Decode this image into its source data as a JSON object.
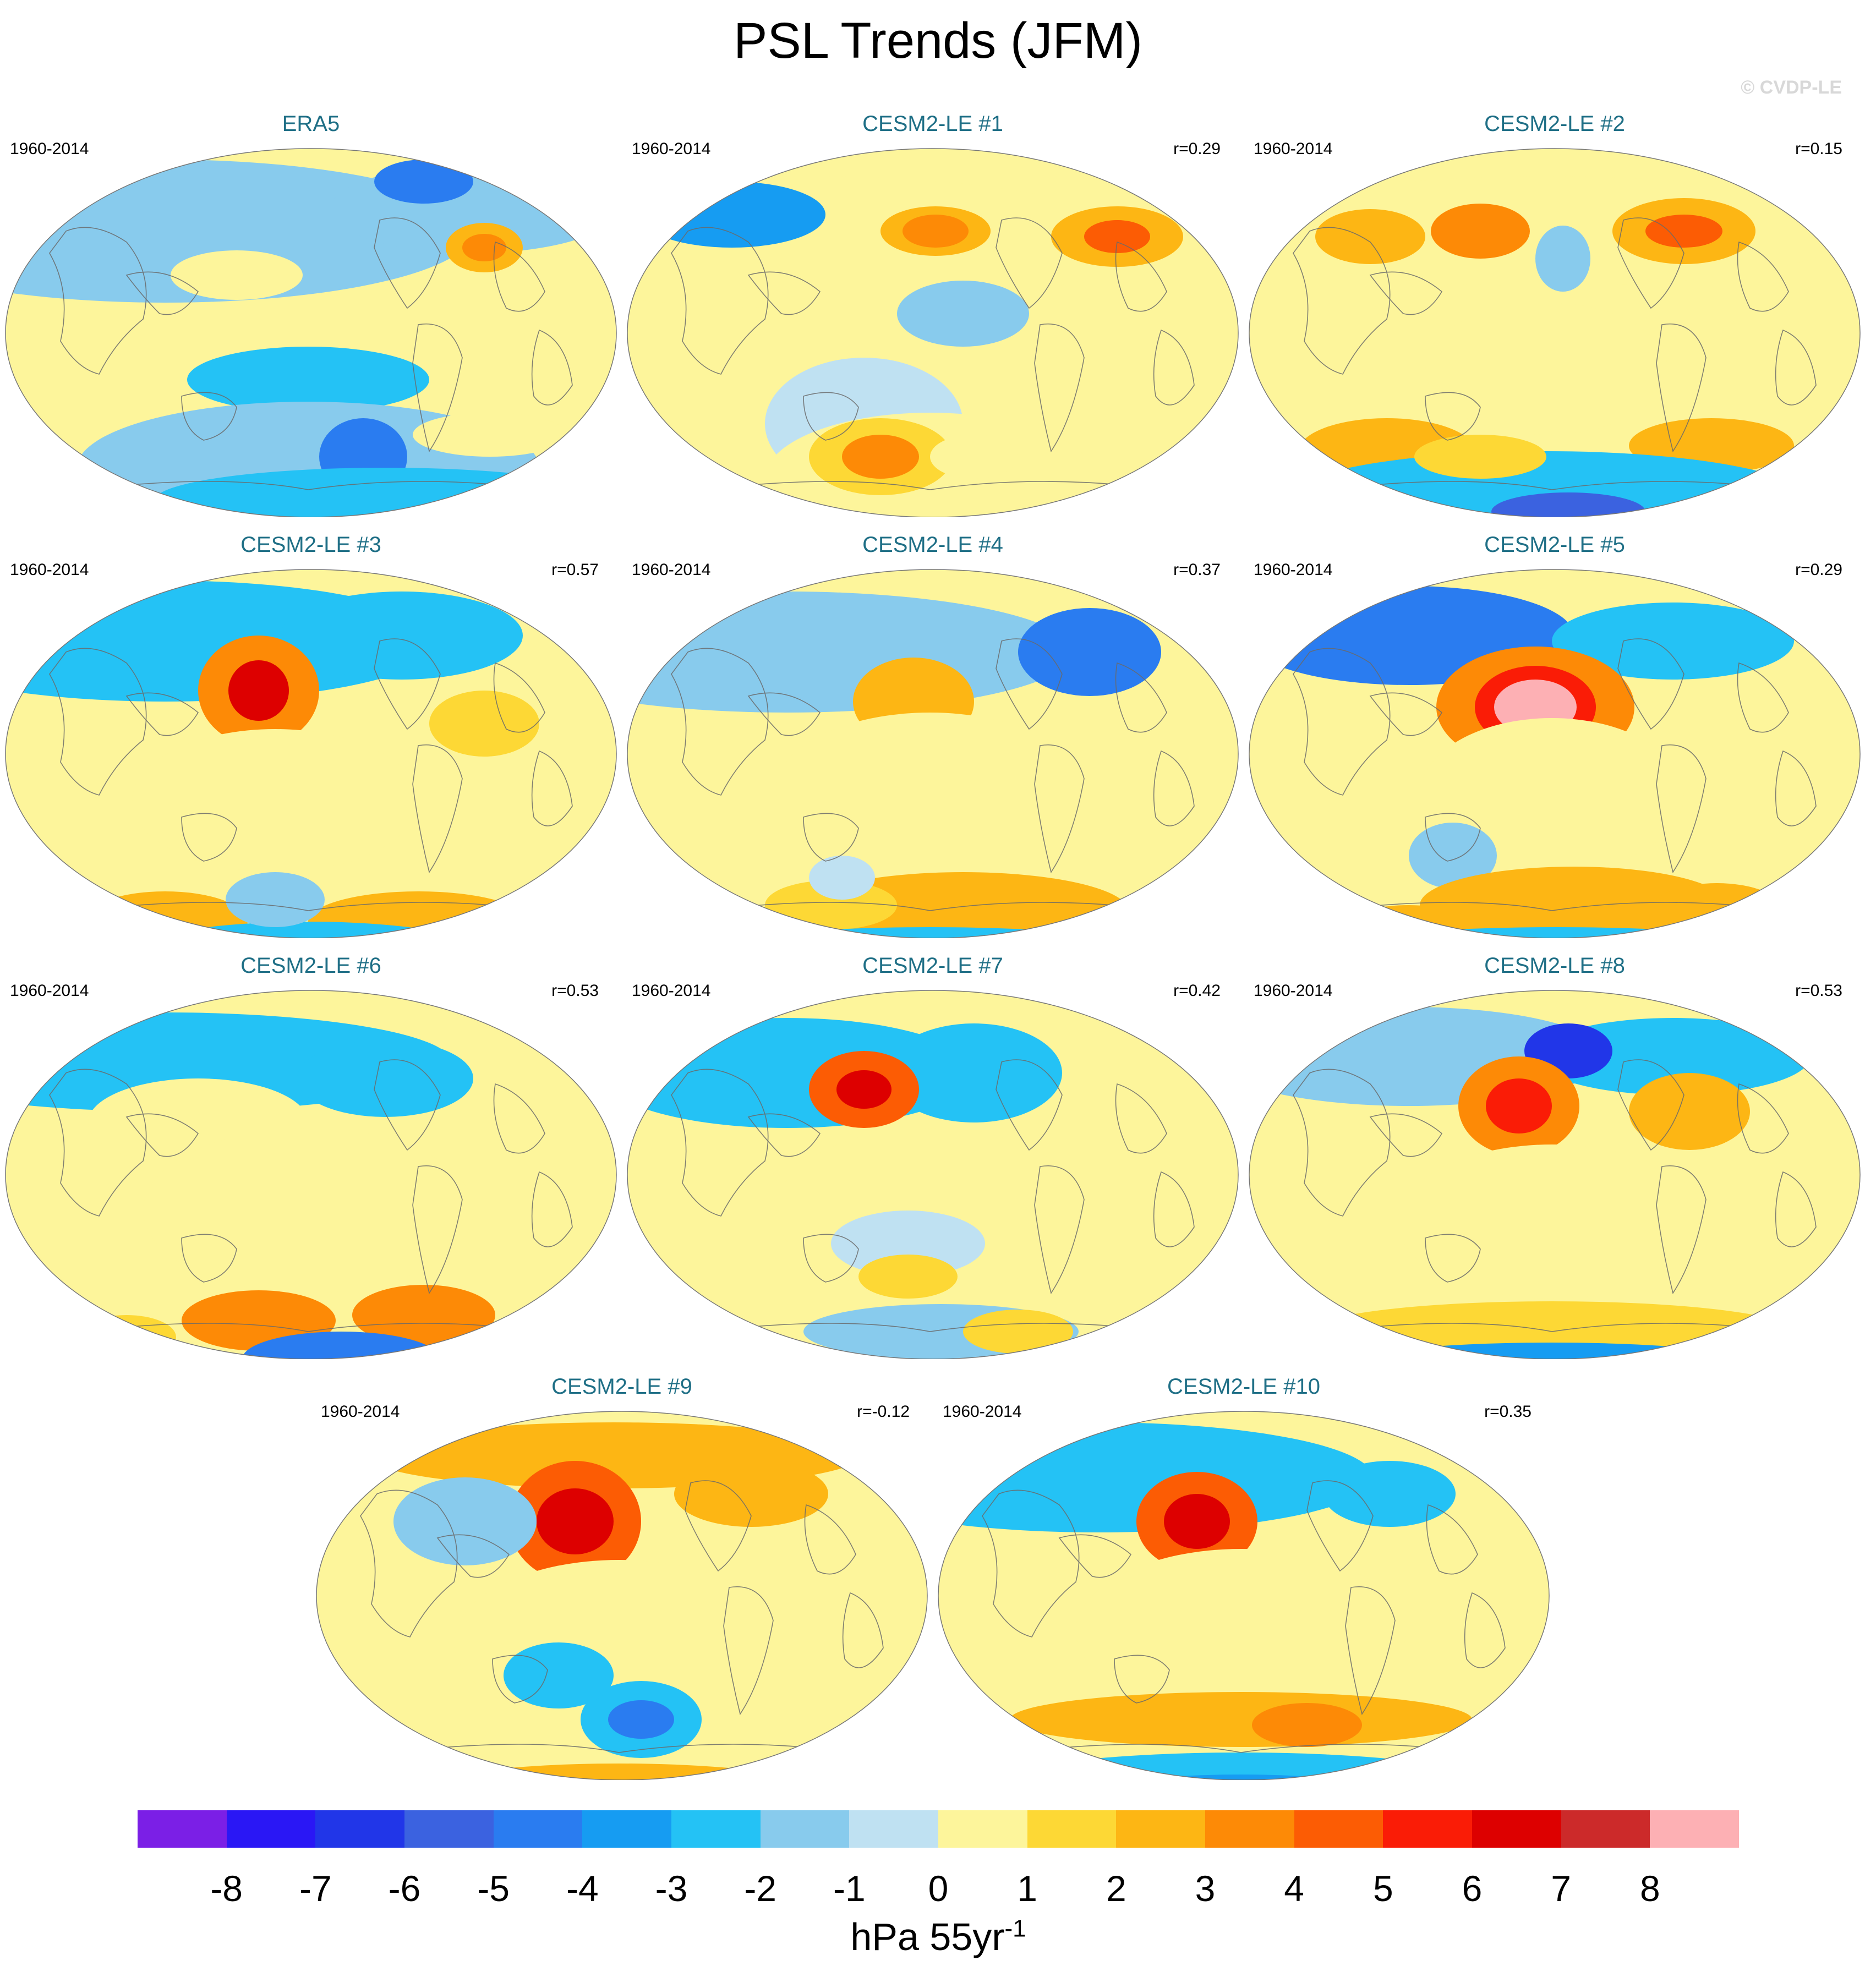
{
  "title": "PSL Trends (JFM)",
  "watermark": "© CVDP-LE",
  "period": "1960-2014",
  "panels": [
    {
      "title": "ERA5",
      "corr": ""
    },
    {
      "title": "CESM2-LE #1",
      "corr": "r=0.29"
    },
    {
      "title": "CESM2-LE #2",
      "corr": "r=0.15"
    },
    {
      "title": "CESM2-LE #3",
      "corr": "r=0.57"
    },
    {
      "title": "CESM2-LE #4",
      "corr": "r=0.37"
    },
    {
      "title": "CESM2-LE #5",
      "corr": "r=0.29"
    },
    {
      "title": "CESM2-LE #6",
      "corr": "r=0.53"
    },
    {
      "title": "CESM2-LE #7",
      "corr": "r=0.42"
    },
    {
      "title": "CESM2-LE #8",
      "corr": "r=0.53"
    },
    {
      "title": "CESM2-LE #9",
      "corr": "r=-0.12"
    },
    {
      "title": "CESM2-LE #10",
      "corr": "r=0.35"
    }
  ],
  "colorbar": {
    "levels": [
      -8,
      -7,
      -6,
      -5,
      -4,
      -3,
      -2,
      -1,
      0,
      1,
      2,
      3,
      4,
      5,
      6,
      7,
      8
    ],
    "tick_labels": [
      "-8",
      "-7",
      "-6",
      "-5",
      "-4",
      "-3",
      "-2",
      "-1",
      "0",
      "1",
      "2",
      "3",
      "4",
      "5",
      "6",
      "7",
      "8"
    ],
    "colors": [
      "#7b1fe6",
      "#2a17f5",
      "#2136e8",
      "#3b62e0",
      "#2a7cf0",
      "#169cf2",
      "#24c2f5",
      "#88cbed",
      "#bfe1f2",
      "#fdf59b",
      "#fdd835",
      "#fdb614",
      "#fd8a06",
      "#fc5c04",
      "#fa1c06",
      "#dd0000",
      "#cc2a2a",
      "#fdb0b4"
    ],
    "units_base": "hPa 55yr",
    "units_exp": "-1"
  }
}
